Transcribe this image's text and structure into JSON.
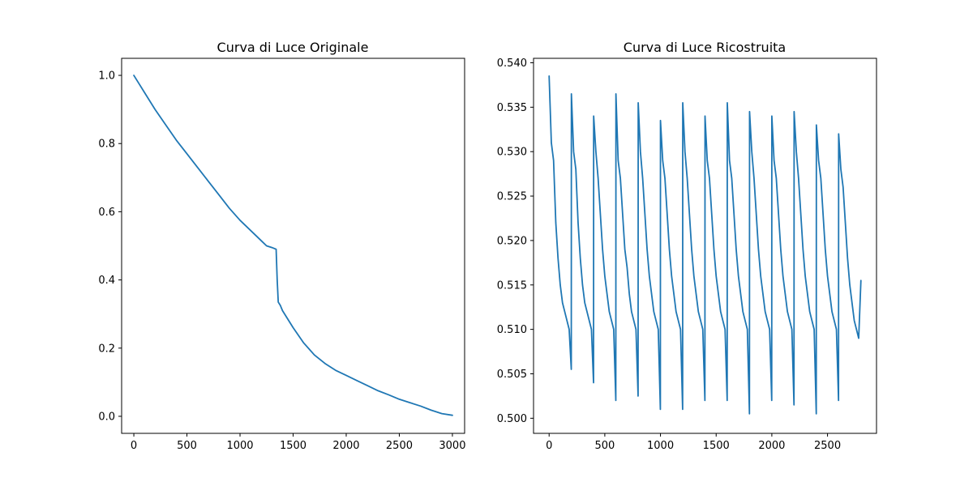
{
  "figure": {
    "background": "#ffffff",
    "line_color": "#1f77b4"
  },
  "chart_data": [
    {
      "type": "line",
      "title": "Curva di Luce Originale",
      "xlabel": "",
      "ylabel": "",
      "xlim": [
        -115,
        3115
      ],
      "ylim": [
        -0.05,
        1.05
      ],
      "xticks": [
        0,
        500,
        1000,
        1500,
        2000,
        2500,
        3000
      ],
      "xtick_labels": [
        "0",
        "500",
        "1000",
        "1500",
        "2000",
        "2500",
        "3000"
      ],
      "yticks": [
        0.0,
        0.2,
        0.4,
        0.6,
        0.8,
        1.0
      ],
      "ytick_labels": [
        "0.0",
        "0.2",
        "0.4",
        "0.6",
        "0.8",
        "1.0"
      ],
      "grid": false,
      "series": [
        {
          "color": "#1f77b4",
          "x": [
            0,
            50,
            100,
            200,
            300,
            400,
            500,
            600,
            700,
            800,
            900,
            1000,
            1100,
            1200,
            1250,
            1300,
            1340,
            1350,
            1360,
            1380,
            1400,
            1450,
            1500,
            1600,
            1700,
            1800,
            1900,
            2000,
            2100,
            2200,
            2300,
            2400,
            2500,
            2600,
            2700,
            2800,
            2900,
            3000
          ],
          "y": [
            1.0,
            0.975,
            0.95,
            0.9,
            0.855,
            0.81,
            0.77,
            0.73,
            0.69,
            0.65,
            0.61,
            0.575,
            0.545,
            0.515,
            0.5,
            0.495,
            0.49,
            0.4,
            0.335,
            0.325,
            0.31,
            0.285,
            0.26,
            0.215,
            0.18,
            0.155,
            0.135,
            0.12,
            0.105,
            0.09,
            0.075,
            0.063,
            0.05,
            0.04,
            0.03,
            0.018,
            0.008,
            0.003
          ]
        }
      ]
    },
    {
      "type": "line",
      "title": "Curva di Luce Ricostruita",
      "xlabel": "",
      "ylabel": "",
      "xlim": [
        -140,
        2940
      ],
      "ylim": [
        0.4983,
        0.5405
      ],
      "xticks": [
        0,
        500,
        1000,
        1500,
        2000,
        2500
      ],
      "xtick_labels": [
        "0",
        "500",
        "1000",
        "1500",
        "2000",
        "2500"
      ],
      "yticks": [
        0.5,
        0.505,
        0.51,
        0.515,
        0.52,
        0.525,
        0.53,
        0.535,
        0.54
      ],
      "ytick_labels": [
        "0.500",
        "0.505",
        "0.510",
        "0.515",
        "0.520",
        "0.525",
        "0.530",
        "0.535",
        "0.540"
      ],
      "grid": false,
      "period": 200,
      "series": [
        {
          "color": "#1f77b4",
          "x": [
            0,
            20,
            40,
            60,
            80,
            100,
            120,
            140,
            160,
            180,
            199,
            200,
            220,
            240,
            260,
            280,
            300,
            320,
            340,
            360,
            380,
            399,
            400,
            420,
            440,
            460,
            480,
            500,
            520,
            540,
            560,
            580,
            599,
            600,
            620,
            640,
            660,
            680,
            700,
            720,
            740,
            760,
            780,
            799,
            800,
            820,
            840,
            860,
            880,
            900,
            920,
            940,
            960,
            980,
            999,
            1000,
            1020,
            1040,
            1060,
            1080,
            1100,
            1120,
            1140,
            1160,
            1180,
            1199,
            1200,
            1220,
            1240,
            1260,
            1280,
            1300,
            1320,
            1340,
            1360,
            1380,
            1399,
            1400,
            1420,
            1440,
            1460,
            1480,
            1500,
            1520,
            1540,
            1560,
            1580,
            1599,
            1600,
            1620,
            1640,
            1660,
            1680,
            1700,
            1720,
            1740,
            1760,
            1780,
            1799,
            1800,
            1820,
            1840,
            1860,
            1880,
            1900,
            1920,
            1940,
            1960,
            1980,
            1999,
            2000,
            2020,
            2040,
            2060,
            2080,
            2100,
            2120,
            2140,
            2160,
            2180,
            2199,
            2200,
            2220,
            2240,
            2260,
            2280,
            2300,
            2320,
            2340,
            2360,
            2380,
            2399,
            2400,
            2420,
            2440,
            2460,
            2480,
            2500,
            2520,
            2540,
            2560,
            2580,
            2599,
            2600,
            2620,
            2640,
            2660,
            2680,
            2700,
            2720,
            2740,
            2760,
            2780,
            2800
          ],
          "y": [
            0.5385,
            0.531,
            0.529,
            0.522,
            0.518,
            0.515,
            0.513,
            0.512,
            0.511,
            0.51,
            0.5055,
            0.5365,
            0.53,
            0.528,
            0.522,
            0.518,
            0.515,
            0.513,
            0.512,
            0.511,
            0.51,
            0.504,
            0.534,
            0.53,
            0.527,
            0.523,
            0.519,
            0.516,
            0.514,
            0.512,
            0.511,
            0.51,
            0.502,
            0.5365,
            0.529,
            0.527,
            0.523,
            0.519,
            0.517,
            0.514,
            0.512,
            0.511,
            0.51,
            0.5025,
            0.5355,
            0.53,
            0.527,
            0.523,
            0.519,
            0.516,
            0.514,
            0.512,
            0.511,
            0.51,
            0.501,
            0.5335,
            0.529,
            0.527,
            0.523,
            0.519,
            0.516,
            0.514,
            0.512,
            0.511,
            0.51,
            0.501,
            0.5355,
            0.53,
            0.527,
            0.523,
            0.519,
            0.516,
            0.514,
            0.512,
            0.511,
            0.51,
            0.502,
            0.534,
            0.529,
            0.527,
            0.523,
            0.519,
            0.516,
            0.514,
            0.512,
            0.511,
            0.51,
            0.502,
            0.5355,
            0.529,
            0.527,
            0.523,
            0.519,
            0.516,
            0.514,
            0.512,
            0.511,
            0.51,
            0.5005,
            0.5345,
            0.53,
            0.527,
            0.523,
            0.519,
            0.516,
            0.514,
            0.512,
            0.511,
            0.51,
            0.502,
            0.534,
            0.529,
            0.527,
            0.523,
            0.519,
            0.516,
            0.514,
            0.512,
            0.511,
            0.51,
            0.5015,
            0.5345,
            0.53,
            0.527,
            0.523,
            0.519,
            0.516,
            0.514,
            0.512,
            0.511,
            0.51,
            0.5005,
            0.533,
            0.529,
            0.527,
            0.523,
            0.519,
            0.516,
            0.514,
            0.512,
            0.511,
            0.51,
            0.502,
            0.532,
            0.528,
            0.526,
            0.522,
            0.518,
            0.515,
            0.513,
            0.511,
            0.51,
            0.509,
            0.5155
          ]
        }
      ]
    }
  ]
}
